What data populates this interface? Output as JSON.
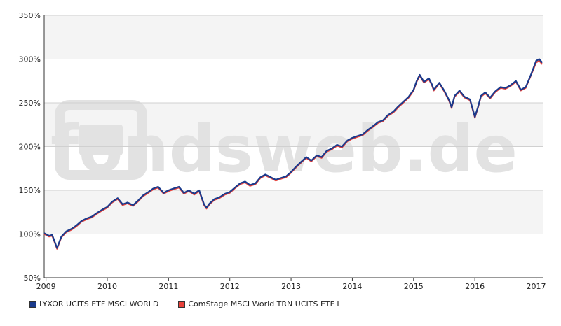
{
  "watermark": "fondsweb.de",
  "colors": {
    "series1": "#1a3a8c",
    "series2": "#e8413a",
    "band": "#f4f4f4",
    "grid": "#d0d0d0",
    "watermark": "#e2e2e2"
  },
  "chart_data": {
    "type": "line",
    "ylim": [
      50,
      350
    ],
    "xlim": [
      2008.97,
      2017.12
    ],
    "y_ticks": [
      50,
      100,
      150,
      200,
      250,
      300,
      350
    ],
    "y_tick_labels": [
      "50%",
      "100%",
      "150%",
      "200%",
      "250%",
      "300%",
      "350%"
    ],
    "x_ticks": [
      2009,
      2010,
      2011,
      2012,
      2013,
      2014,
      2015,
      2016,
      2017
    ],
    "x_tick_labels": [
      "2009",
      "2010",
      "2011",
      "2012",
      "2013",
      "2014",
      "2015",
      "2016",
      "2017"
    ],
    "grid": true,
    "legend_position": "bottom-left",
    "x": [
      2008.97,
      2009.05,
      2009.1,
      2009.18,
      2009.25,
      2009.33,
      2009.42,
      2009.5,
      2009.58,
      2009.67,
      2009.75,
      2009.83,
      2009.92,
      2010.0,
      2010.08,
      2010.17,
      2010.25,
      2010.33,
      2010.42,
      2010.5,
      2010.58,
      2010.67,
      2010.75,
      2010.83,
      2010.92,
      2011.0,
      2011.08,
      2011.17,
      2011.25,
      2011.33,
      2011.42,
      2011.5,
      2011.58,
      2011.62,
      2011.67,
      2011.75,
      2011.83,
      2011.92,
      2012.0,
      2012.08,
      2012.17,
      2012.25,
      2012.33,
      2012.42,
      2012.5,
      2012.58,
      2012.67,
      2012.75,
      2012.83,
      2012.92,
      2013.0,
      2013.08,
      2013.17,
      2013.25,
      2013.33,
      2013.42,
      2013.5,
      2013.58,
      2013.67,
      2013.75,
      2013.83,
      2013.92,
      2014.0,
      2014.08,
      2014.17,
      2014.25,
      2014.33,
      2014.42,
      2014.5,
      2014.58,
      2014.67,
      2014.75,
      2014.83,
      2014.92,
      2015.0,
      2015.05,
      2015.1,
      2015.17,
      2015.25,
      2015.3,
      2015.33,
      2015.42,
      2015.5,
      2015.58,
      2015.62,
      2015.67,
      2015.75,
      2015.83,
      2015.92,
      2016.0,
      2016.05,
      2016.1,
      2016.17,
      2016.25,
      2016.33,
      2016.42,
      2016.5,
      2016.58,
      2016.67,
      2016.75,
      2016.83,
      2016.92,
      2017.0,
      2017.05,
      2017.1
    ],
    "series": [
      {
        "name": "LYXOR UCITS ETF MSCI WORLD",
        "values": [
          101,
          98,
          99,
          84,
          97,
          103,
          106,
          110,
          115,
          118,
          120,
          124,
          128,
          131,
          137,
          141,
          134,
          136,
          133,
          138,
          144,
          148,
          152,
          154,
          147,
          150,
          152,
          154,
          147,
          150,
          146,
          150,
          134,
          130,
          135,
          140,
          142,
          146,
          148,
          153,
          158,
          160,
          156,
          158,
          165,
          168,
          165,
          162,
          164,
          166,
          171,
          177,
          183,
          188,
          184,
          190,
          188,
          195,
          198,
          202,
          200,
          207,
          210,
          212,
          214,
          219,
          223,
          228,
          230,
          236,
          240,
          246,
          251,
          257,
          265,
          275,
          282,
          274,
          278,
          271,
          265,
          273,
          264,
          253,
          245,
          258,
          264,
          257,
          254,
          234,
          245,
          258,
          262,
          256,
          263,
          268,
          267,
          270,
          275,
          265,
          268,
          283,
          298,
          300,
          296
        ]
      },
      {
        "name": "ComStage MSCI World TRN UCITS ETF I",
        "values": [
          100,
          97,
          98,
          83,
          96,
          102,
          105,
          109,
          114,
          117,
          119,
          123,
          127,
          130,
          136,
          140,
          133,
          135,
          132,
          137,
          143,
          147,
          151,
          153,
          146,
          149,
          151,
          153,
          146,
          149,
          145,
          149,
          133,
          129,
          134,
          139,
          141,
          145,
          147,
          152,
          157,
          159,
          155,
          157,
          164,
          167,
          164,
          161,
          163,
          165,
          170,
          176,
          182,
          187,
          183,
          189,
          187,
          194,
          197,
          201,
          199,
          206,
          209,
          211,
          213,
          218,
          222,
          227,
          229,
          235,
          239,
          245,
          250,
          256,
          264,
          274,
          281,
          273,
          277,
          270,
          264,
          272,
          263,
          252,
          244,
          257,
          263,
          256,
          253,
          233,
          244,
          257,
          261,
          255,
          262,
          267,
          266,
          269,
          274,
          264,
          267,
          282,
          296,
          298,
          294
        ]
      }
    ]
  }
}
